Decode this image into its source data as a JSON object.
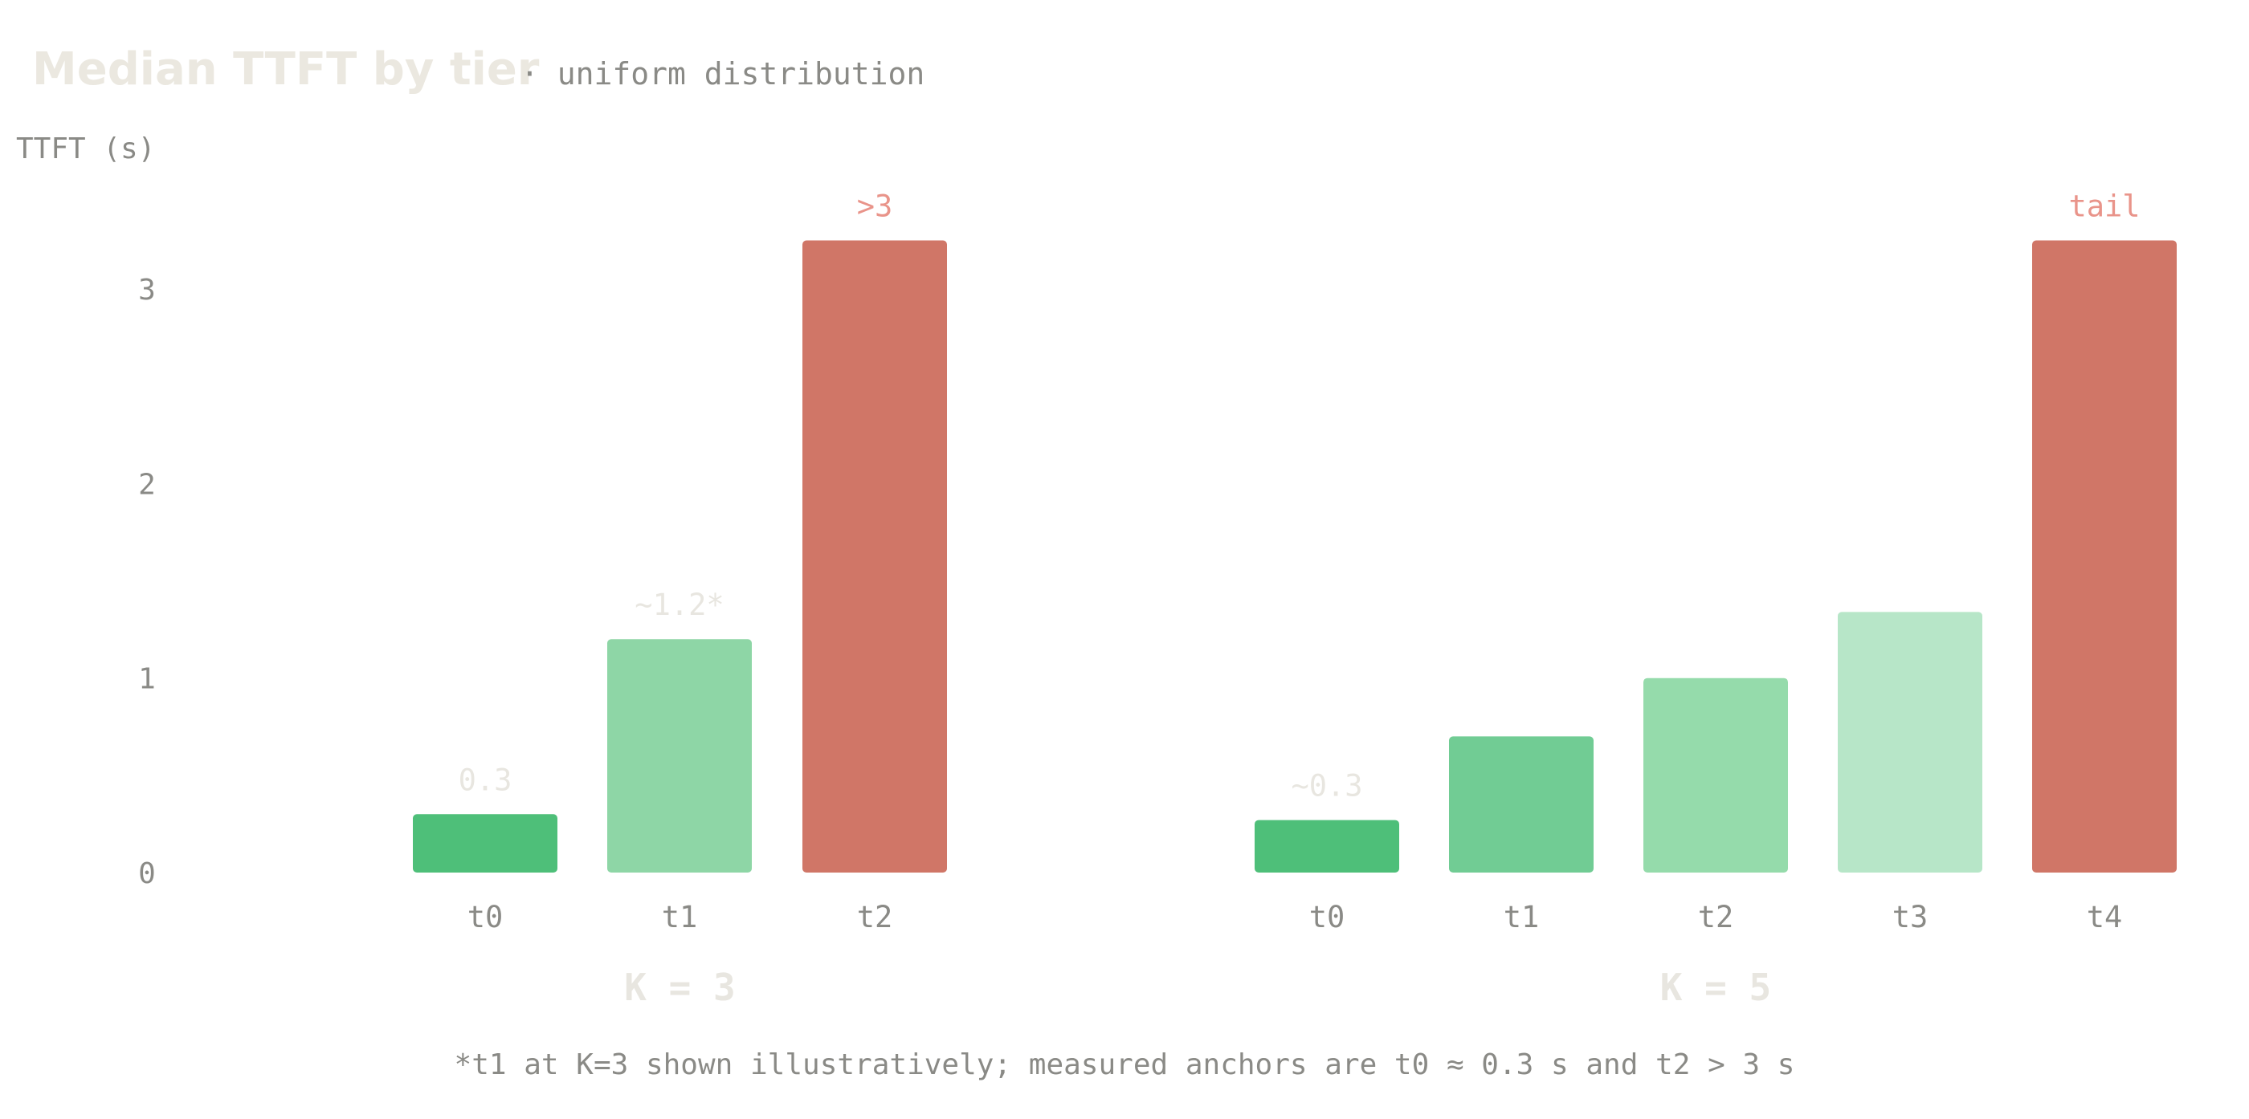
{
  "title": "Median TTFT by tier",
  "subtitle": "· uniform distribution",
  "footnote": "*t1 at K=3 shown illustratively; measured anchors are t0 ≈ 0.3 s and t2 > 3 s",
  "colors": {
    "title": "#ebe8e0",
    "muted_text": "#8a8a86",
    "faint_label": "#e8e6e0",
    "red_label": "#e9948a",
    "green_900": "#4ebf79",
    "green_700": "#71cc94",
    "green_500": "#8ed6a6",
    "green_300": "#95dbab",
    "green_100": "#b7e6c8",
    "red_bar": "#d07667"
  },
  "chart_data": {
    "type": "bar",
    "ylabel": "TTFT (s)",
    "ylim": [
      0,
      3
    ],
    "yticks": [
      0,
      1,
      2,
      3
    ],
    "groups": [
      {
        "name": "K = 3",
        "categories": [
          "t0",
          "t1",
          "t2"
        ],
        "values": [
          0.3,
          1.2,
          3.25
        ],
        "labels": [
          "0.3",
          "~1.2*",
          ">3"
        ],
        "label_colors": [
          "faint_label",
          "faint_label",
          "red_label"
        ],
        "bar_colors": [
          "green_900",
          "green_500",
          "red_bar"
        ]
      },
      {
        "name": "K = 5",
        "categories": [
          "t0",
          "t1",
          "t2",
          "t3",
          "t4"
        ],
        "values": [
          0.27,
          0.7,
          1.0,
          1.34,
          3.25
        ],
        "labels": [
          "~0.3",
          "",
          "",
          "",
          "tail"
        ],
        "label_colors": [
          "faint_label",
          "faint_label",
          "faint_label",
          "faint_label",
          "red_label"
        ],
        "bar_colors": [
          "green_900",
          "green_700",
          "green_300",
          "green_100",
          "red_bar"
        ]
      }
    ]
  }
}
